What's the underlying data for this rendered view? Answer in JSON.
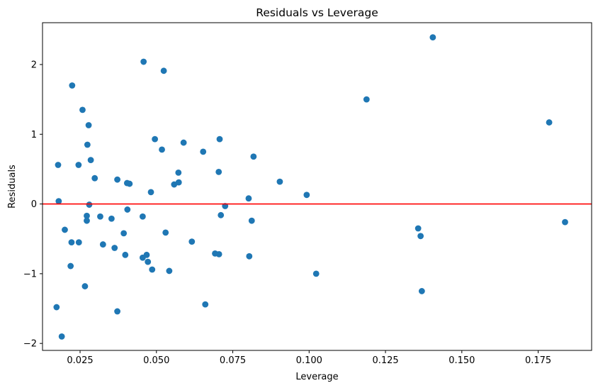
{
  "chart_data": {
    "type": "scatter",
    "title": "Residuals vs Leverage",
    "xlabel": "Leverage",
    "ylabel": "Residuals",
    "xlim": [
      0.0127,
      0.1925
    ],
    "ylim": [
      -2.1,
      2.6
    ],
    "x_ticks": [
      0.025,
      0.05,
      0.075,
      0.1,
      0.125,
      0.15,
      0.175
    ],
    "x_tick_labels": [
      "0.025",
      "0.050",
      "0.075",
      "0.100",
      "0.125",
      "0.150",
      "0.175"
    ],
    "y_ticks": [
      -2,
      -1,
      0,
      1,
      2
    ],
    "y_tick_labels": [
      "−2",
      "−1",
      "0",
      "1",
      "2"
    ],
    "grid": false,
    "reference_line": {
      "y": 0,
      "color": "#ff0000"
    },
    "marker_color": "#1f77b4",
    "points": [
      {
        "x": 0.0458,
        "y": 2.04
      },
      {
        "x": 0.0524,
        "y": 1.91
      },
      {
        "x": 0.0224,
        "y": 1.7
      },
      {
        "x": 0.1405,
        "y": 2.39
      },
      {
        "x": 0.1188,
        "y": 1.5
      },
      {
        "x": 0.0258,
        "y": 1.35
      },
      {
        "x": 0.0278,
        "y": 1.13
      },
      {
        "x": 0.1786,
        "y": 1.17
      },
      {
        "x": 0.0274,
        "y": 0.85
      },
      {
        "x": 0.0495,
        "y": 0.93
      },
      {
        "x": 0.0589,
        "y": 0.88
      },
      {
        "x": 0.0707,
        "y": 0.93
      },
      {
        "x": 0.0518,
        "y": 0.78
      },
      {
        "x": 0.0653,
        "y": 0.75
      },
      {
        "x": 0.0818,
        "y": 0.68
      },
      {
        "x": 0.0285,
        "y": 0.63
      },
      {
        "x": 0.0178,
        "y": 0.56
      },
      {
        "x": 0.0245,
        "y": 0.56
      },
      {
        "x": 0.0572,
        "y": 0.45
      },
      {
        "x": 0.0704,
        "y": 0.46
      },
      {
        "x": 0.0298,
        "y": 0.37
      },
      {
        "x": 0.0372,
        "y": 0.35
      },
      {
        "x": 0.0404,
        "y": 0.3
      },
      {
        "x": 0.0412,
        "y": 0.29
      },
      {
        "x": 0.0573,
        "y": 0.31
      },
      {
        "x": 0.0558,
        "y": 0.28
      },
      {
        "x": 0.0904,
        "y": 0.32
      },
      {
        "x": 0.0482,
        "y": 0.17
      },
      {
        "x": 0.0992,
        "y": 0.13
      },
      {
        "x": 0.0802,
        "y": 0.08
      },
      {
        "x": 0.018,
        "y": 0.04
      },
      {
        "x": 0.028,
        "y": -0.01
      },
      {
        "x": 0.0725,
        "y": -0.03
      },
      {
        "x": 0.0405,
        "y": -0.08
      },
      {
        "x": 0.0272,
        "y": -0.17
      },
      {
        "x": 0.0316,
        "y": -0.18
      },
      {
        "x": 0.0353,
        "y": -0.21
      },
      {
        "x": 0.0455,
        "y": -0.18
      },
      {
        "x": 0.0711,
        "y": -0.16
      },
      {
        "x": 0.0272,
        "y": -0.24
      },
      {
        "x": 0.0812,
        "y": -0.24
      },
      {
        "x": 0.1838,
        "y": -0.26
      },
      {
        "x": 0.02,
        "y": -0.37
      },
      {
        "x": 0.1357,
        "y": -0.35
      },
      {
        "x": 0.0393,
        "y": -0.42
      },
      {
        "x": 0.053,
        "y": -0.41
      },
      {
        "x": 0.1365,
        "y": -0.46
      },
      {
        "x": 0.0222,
        "y": -0.55
      },
      {
        "x": 0.0246,
        "y": -0.55
      },
      {
        "x": 0.0325,
        "y": -0.58
      },
      {
        "x": 0.0363,
        "y": -0.63
      },
      {
        "x": 0.0616,
        "y": -0.54
      },
      {
        "x": 0.0398,
        "y": -0.73
      },
      {
        "x": 0.0468,
        "y": -0.73
      },
      {
        "x": 0.0455,
        "y": -0.77
      },
      {
        "x": 0.0692,
        "y": -0.71
      },
      {
        "x": 0.0705,
        "y": -0.72
      },
      {
        "x": 0.0804,
        "y": -0.75
      },
      {
        "x": 0.0472,
        "y": -0.83
      },
      {
        "x": 0.0219,
        "y": -0.89
      },
      {
        "x": 0.0486,
        "y": -0.94
      },
      {
        "x": 0.0542,
        "y": -0.96
      },
      {
        "x": 0.1023,
        "y": -1.0
      },
      {
        "x": 0.0266,
        "y": -1.18
      },
      {
        "x": 0.1369,
        "y": -1.25
      },
      {
        "x": 0.066,
        "y": -1.44
      },
      {
        "x": 0.0173,
        "y": -1.48
      },
      {
        "x": 0.0372,
        "y": -1.54
      },
      {
        "x": 0.019,
        "y": -1.9
      }
    ]
  }
}
